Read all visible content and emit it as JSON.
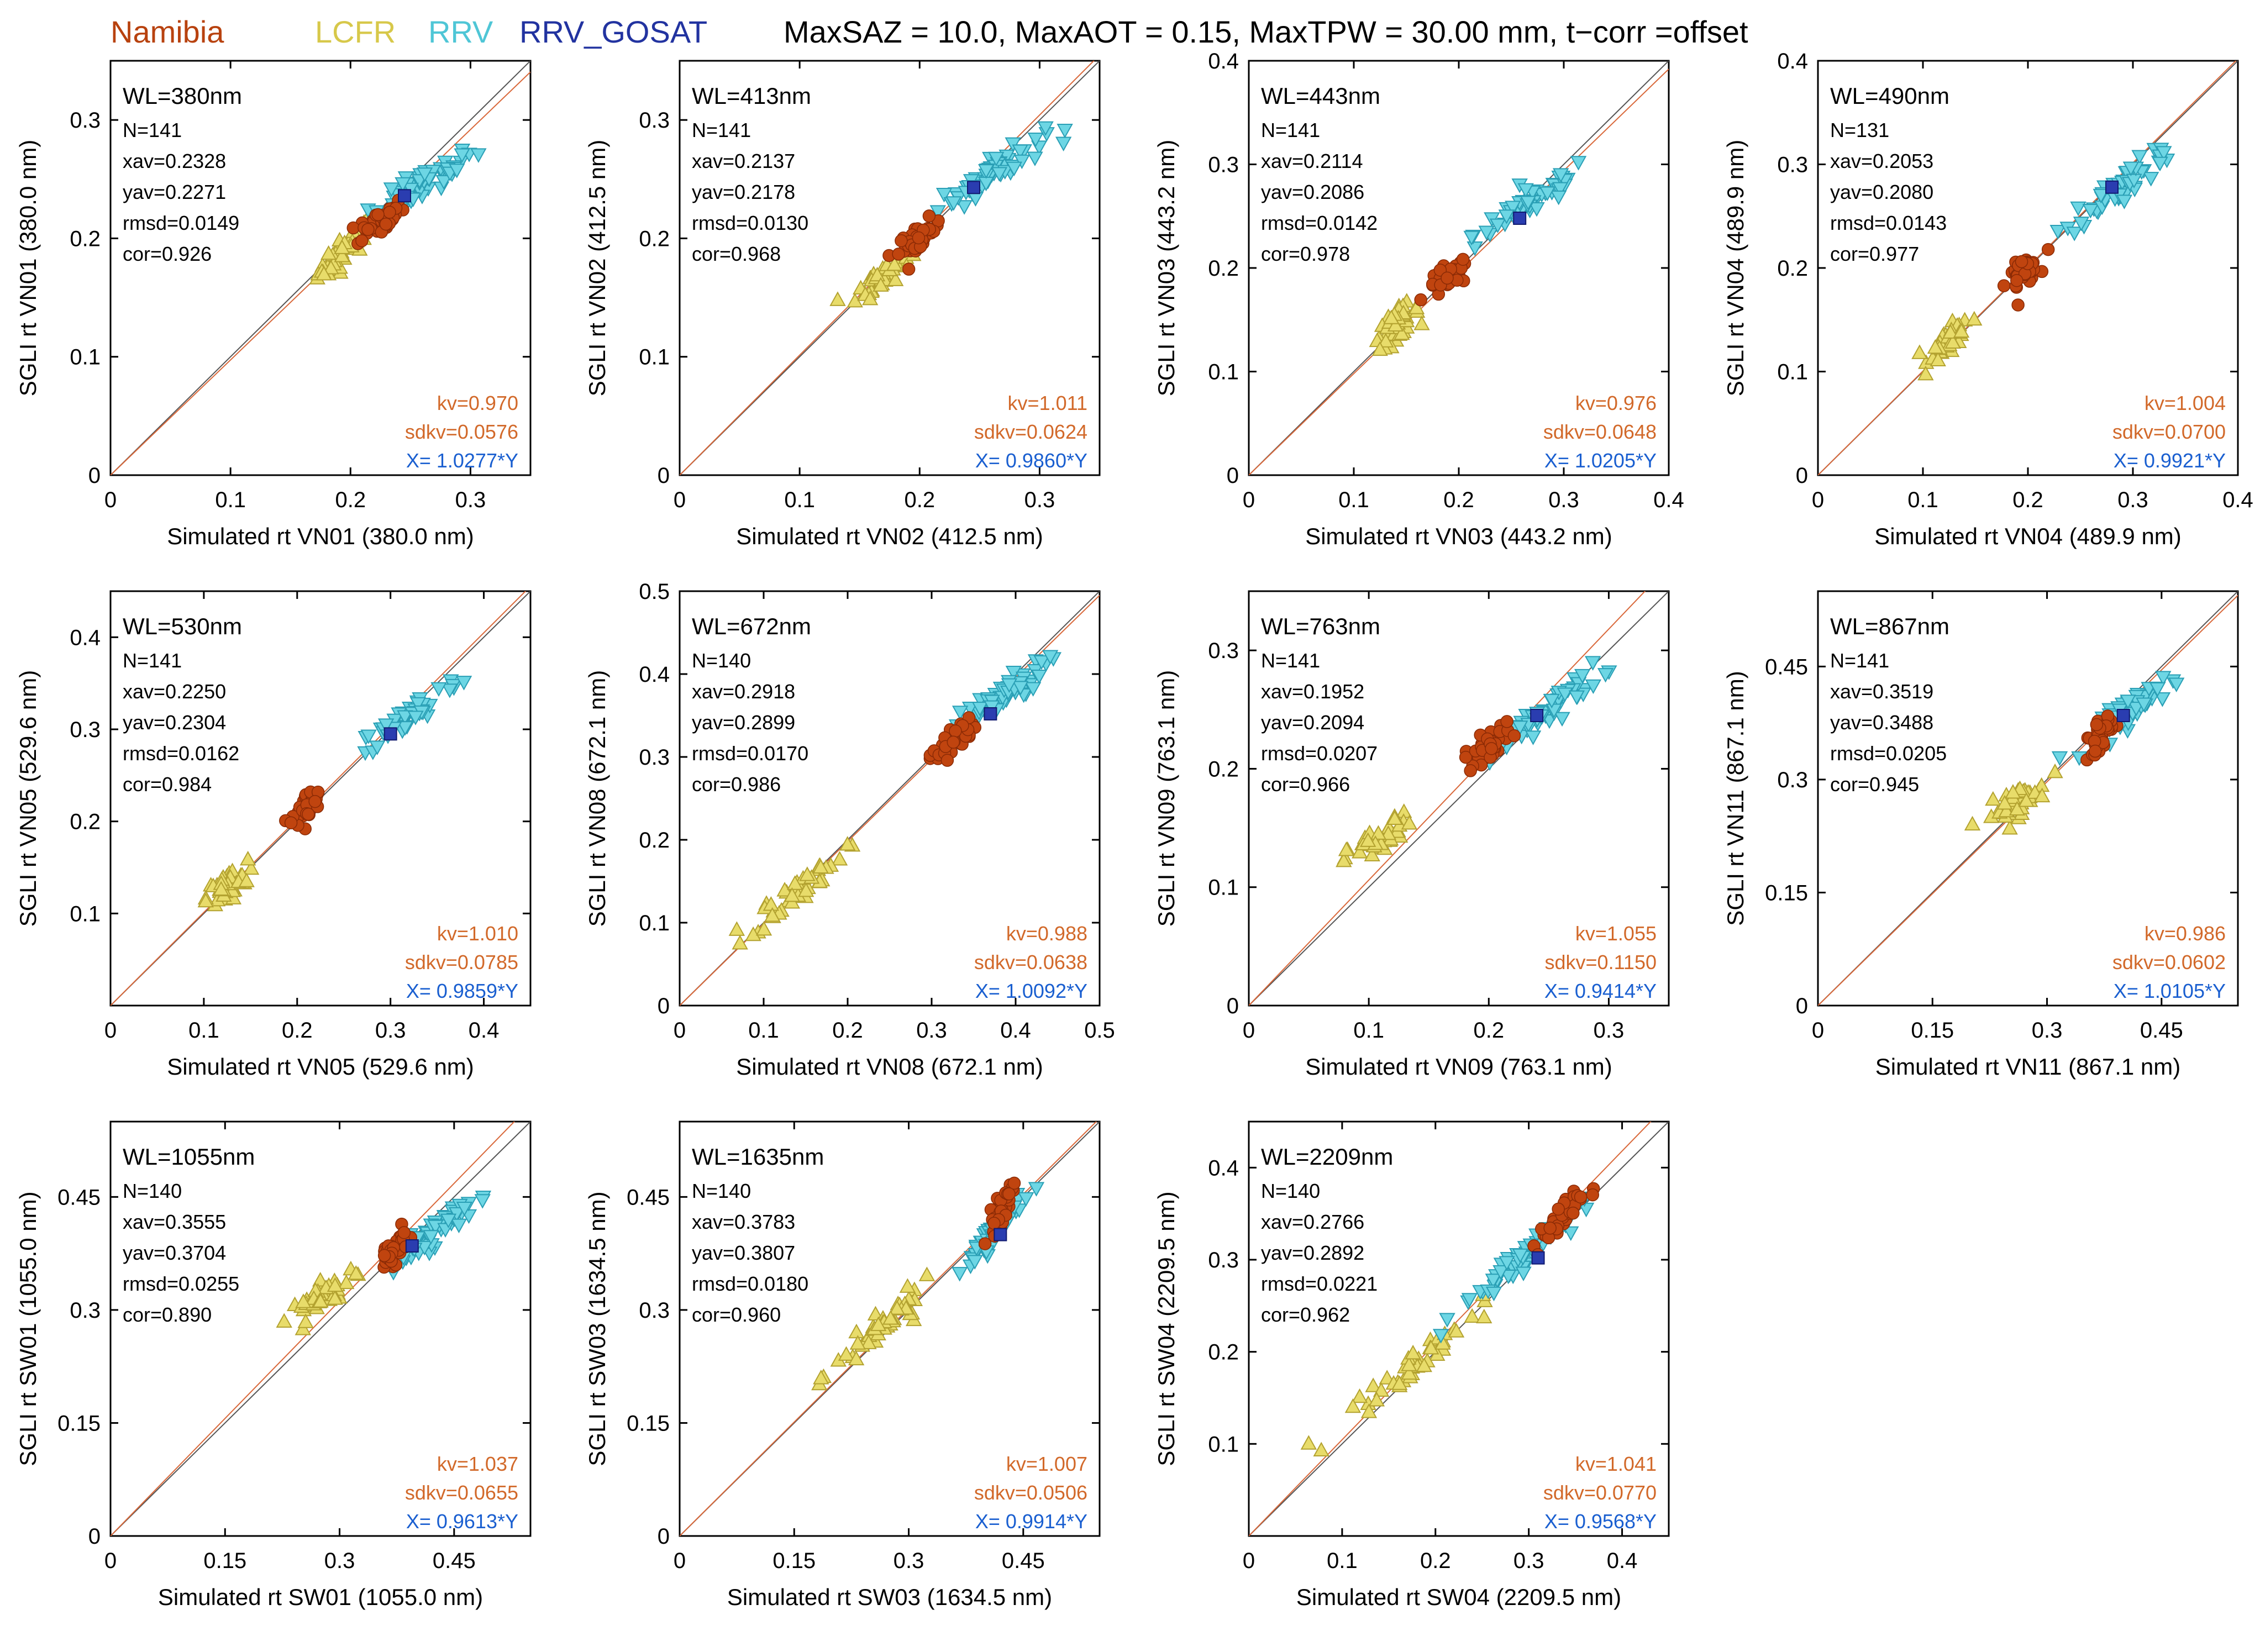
{
  "header": {
    "legend": [
      {
        "label": "Namibia",
        "color": "#b8420f"
      },
      {
        "label": "LCFR",
        "color": "#d7c84a"
      },
      {
        "label": "RRV",
        "color": "#4fc6d6"
      },
      {
        "label": "RRV_GOSAT",
        "color": "#2233a0"
      }
    ],
    "condition": "MaxSAZ = 10.0, MaxAOT = 0.15, MaxTPW = 30.00 mm, t−corr =offset"
  },
  "colors": {
    "namibia_fill": "#c0440f",
    "namibia_stroke": "#8a2a05",
    "lcfr_fill": "#e8dc6a",
    "lcfr_stroke": "#b3a230",
    "rrv_fill": "#6dd6e4",
    "rrv_stroke": "#2a9fb5",
    "gosat_fill": "#2a3db0",
    "fit_line": "#d9683a",
    "kv_text": "#d2692a",
    "x_text": "#1a5fd0"
  },
  "chart_data": [
    {
      "type": "scatter",
      "wl": "WL=380nm",
      "xlabel": "Simulated rt VN01 (380.0 nm)",
      "ylabel": "SGLI rt VN01 (380.0 nm)",
      "xlim": [
        0,
        0.35
      ],
      "ylim": [
        0,
        0.35
      ],
      "xticks": [
        "0",
        "0.1",
        "0.2",
        "0.3"
      ],
      "yticks": [
        "0",
        "0.1",
        "0.2",
        "0.3"
      ],
      "tickvals": [
        0,
        0.1,
        0.2,
        0.3
      ],
      "stats": [
        "N=141",
        "xav=0.2328",
        "yav=0.2271",
        "rmsd=0.0149",
        "cor=0.926"
      ],
      "kv": "kv=0.970",
      "sdkv": "sdkv=0.0576",
      "xfit": "X= 1.0277*Y",
      "slope": 0.973,
      "lcfr": {
        "c": [
          0.195,
          0.19
        ],
        "r": [
          0.02,
          0.018
        ]
      },
      "nam": {
        "c": [
          0.225,
          0.215
        ],
        "r": [
          0.018,
          0.01
        ]
      },
      "rrv": {
        "c": [
          0.26,
          0.245
        ],
        "r": [
          0.04,
          0.025
        ]
      },
      "gosat": [
        0.245,
        0.236
      ]
    },
    {
      "type": "scatter",
      "wl": "WL=413nm",
      "xlabel": "Simulated rt VN02 (412.5 nm)",
      "ylabel": "SGLI rt VN02 (412.5 nm)",
      "xlim": [
        0,
        0.35
      ],
      "ylim": [
        0,
        0.35
      ],
      "xticks": [
        "0",
        "0.1",
        "0.2",
        "0.3"
      ],
      "yticks": [
        "0",
        "0.1",
        "0.2",
        "0.3"
      ],
      "tickvals": [
        0,
        0.1,
        0.2,
        0.3
      ],
      "stats": [
        "N=141",
        "xav=0.2137",
        "yav=0.2178",
        "rmsd=0.0130",
        "cor=0.968"
      ],
      "kv": "kv=1.011",
      "sdkv": "sdkv=0.0624",
      "xfit": "X= 0.9860*Y",
      "slope": 1.014,
      "lcfr": {
        "c": [
          0.17,
          0.17
        ],
        "r": [
          0.02,
          0.015
        ]
      },
      "nam": {
        "c": [
          0.2,
          0.2
        ],
        "r": [
          0.016,
          0.01
        ]
      },
      "rrv": {
        "c": [
          0.26,
          0.255
        ],
        "r": [
          0.04,
          0.025
        ]
      },
      "gosat": [
        0.245,
        0.243
      ]
    },
    {
      "type": "scatter",
      "wl": "WL=443nm",
      "xlabel": "Simulated rt VN03 (443.2 nm)",
      "ylabel": "SGLI rt VN03 (443.2 nm)",
      "xlim": [
        0,
        0.4
      ],
      "ylim": [
        0,
        0.4
      ],
      "xticks": [
        "0",
        "0.1",
        "0.2",
        "0.3",
        "0.4"
      ],
      "yticks": [
        "0",
        "0.1",
        "0.2",
        "0.3",
        "0.4"
      ],
      "tickvals": [
        0,
        0.1,
        0.2,
        0.3,
        0.4
      ],
      "stats": [
        "N=141",
        "xav=0.2114",
        "yav=0.2086",
        "rmsd=0.0142",
        "cor=0.978"
      ],
      "kv": "kv=0.976",
      "sdkv": "sdkv=0.0648",
      "xfit": "X= 1.0205*Y",
      "slope": 0.98,
      "lcfr": {
        "c": [
          0.14,
          0.145
        ],
        "r": [
          0.02,
          0.015
        ]
      },
      "nam": {
        "c": [
          0.19,
          0.19
        ],
        "r": [
          0.018,
          0.01
        ]
      },
      "rrv": {
        "c": [
          0.27,
          0.265
        ],
        "r": [
          0.05,
          0.03
        ]
      },
      "gosat": [
        0.258,
        0.248
      ]
    },
    {
      "type": "scatter",
      "wl": "WL=490nm",
      "xlabel": "Simulated rt VN04 (489.9 nm)",
      "ylabel": "SGLI rt VN04 (489.9 nm)",
      "xlim": [
        0,
        0.4
      ],
      "ylim": [
        0,
        0.4
      ],
      "xticks": [
        "0",
        "0.1",
        "0.2",
        "0.3",
        "0.4"
      ],
      "yticks": [
        "0",
        "0.1",
        "0.2",
        "0.3",
        "0.4"
      ],
      "tickvals": [
        0,
        0.1,
        0.2,
        0.3,
        0.4
      ],
      "stats": [
        "N=131",
        "xav=0.2053",
        "yav=0.2080",
        "rmsd=0.0143",
        "cor=0.977"
      ],
      "kv": "kv=1.004",
      "sdkv": "sdkv=0.0700",
      "xfit": "X= 0.9921*Y",
      "slope": 1.005,
      "lcfr": {
        "c": [
          0.125,
          0.13
        ],
        "r": [
          0.018,
          0.012
        ]
      },
      "nam": {
        "c": [
          0.195,
          0.195
        ],
        "r": [
          0.014,
          0.01
        ]
      },
      "rrv": {
        "c": [
          0.29,
          0.28
        ],
        "r": [
          0.05,
          0.035
        ]
      },
      "gosat": [
        0.28,
        0.278
      ]
    },
    {
      "type": "scatter",
      "wl": "WL=530nm",
      "xlabel": "Simulated rt VN05 (529.6 nm)",
      "ylabel": "SGLI rt VN05 (529.6 nm)",
      "xlim": [
        0,
        0.45
      ],
      "ylim": [
        0,
        0.45
      ],
      "xticks": [
        "0",
        "0.1",
        "0.2",
        "0.3",
        "0.4"
      ],
      "yticks": [
        "0.1",
        "0.2",
        "0.3",
        "0.4"
      ],
      "tickvals": [
        0,
        0.1,
        0.2,
        0.3,
        0.4
      ],
      "stats": [
        "N=141",
        "xav=0.2250",
        "yav=0.2304",
        "rmsd=0.0162",
        "cor=0.984"
      ],
      "kv": "kv=1.010",
      "sdkv": "sdkv=0.0785",
      "xfit": "X= 0.9859*Y",
      "slope": 1.012,
      "lcfr": {
        "c": [
          0.125,
          0.13
        ],
        "r": [
          0.02,
          0.012
        ]
      },
      "nam": {
        "c": [
          0.21,
          0.215
        ],
        "r": [
          0.014,
          0.01
        ]
      },
      "rrv": {
        "c": [
          0.32,
          0.315
        ],
        "r": [
          0.05,
          0.035
        ]
      },
      "gosat": [
        0.3,
        0.295
      ]
    },
    {
      "type": "scatter",
      "wl": "WL=672nm",
      "xlabel": "Simulated rt VN08 (672.1 nm)",
      "ylabel": "SGLI rt VN08 (672.1 nm)",
      "xlim": [
        0,
        0.5
      ],
      "ylim": [
        0,
        0.5
      ],
      "xticks": [
        "0",
        "0.1",
        "0.2",
        "0.3",
        "0.4",
        "0.5"
      ],
      "yticks": [
        "0",
        "0.1",
        "0.2",
        "0.3",
        "0.4",
        "0.5"
      ],
      "tickvals": [
        0,
        0.1,
        0.2,
        0.3,
        0.4,
        0.5
      ],
      "stats": [
        "N=140",
        "xav=0.2918",
        "yav=0.2899",
        "rmsd=0.0170",
        "cor=0.986"
      ],
      "kv": "kv=0.988",
      "sdkv": "sdkv=0.0638",
      "xfit": "X= 1.0092*Y",
      "slope": 0.99,
      "lcfr": {
        "c": [
          0.14,
          0.14
        ],
        "r": [
          0.05,
          0.04
        ]
      },
      "nam": {
        "c": [
          0.325,
          0.32
        ],
        "r": [
          0.025,
          0.02
        ]
      },
      "rrv": {
        "c": [
          0.38,
          0.37
        ],
        "r": [
          0.05,
          0.035
        ]
      },
      "gosat": [
        0.37,
        0.352
      ]
    },
    {
      "type": "scatter",
      "wl": "WL=763nm",
      "xlabel": "Simulated rt VN09 (763.1 nm)",
      "ylabel": "SGLI rt VN09 (763.1 nm)",
      "xlim": [
        0,
        0.35
      ],
      "ylim": [
        0,
        0.35
      ],
      "xticks": [
        "0",
        "0.1",
        "0.2",
        "0.3"
      ],
      "yticks": [
        "0",
        "0.1",
        "0.2",
        "0.3"
      ],
      "tickvals": [
        0,
        0.1,
        0.2,
        0.3
      ],
      "stats": [
        "N=141",
        "xav=0.1952",
        "yav=0.2094",
        "rmsd=0.0207",
        "cor=0.966"
      ],
      "kv": "kv=1.055",
      "sdkv": "sdkv=0.1150",
      "xfit": "X= 0.9414*Y",
      "slope": 1.06,
      "lcfr": {
        "c": [
          0.11,
          0.14
        ],
        "r": [
          0.025,
          0.015
        ]
      },
      "nam": {
        "c": [
          0.2,
          0.22
        ],
        "r": [
          0.018,
          0.012
        ]
      },
      "rrv": {
        "c": [
          0.25,
          0.25
        ],
        "r": [
          0.04,
          0.03
        ]
      },
      "gosat": [
        0.24,
        0.245
      ]
    },
    {
      "type": "scatter",
      "wl": "WL=867nm",
      "xlabel": "Simulated rt VN11 (867.1 nm)",
      "ylabel": "SGLI rt VN11 (867.1 nm)",
      "xlim": [
        0,
        0.55
      ],
      "ylim": [
        0,
        0.55
      ],
      "xticks": [
        "0",
        "0.15",
        "0.3",
        "0.45"
      ],
      "yticks": [
        "0",
        "0.15",
        "0.3",
        "0.45"
      ],
      "tickvals": [
        0,
        0.15,
        0.3,
        0.45
      ],
      "stats": [
        "N=141",
        "xav=0.3519",
        "yav=0.3488",
        "rmsd=0.0205",
        "cor=0.945"
      ],
      "kv": "kv=0.986",
      "sdkv": "sdkv=0.0602",
      "xfit": "X= 1.0105*Y",
      "slope": 0.99,
      "lcfr": {
        "c": [
          0.26,
          0.27
        ],
        "r": [
          0.035,
          0.02
        ]
      },
      "nam": {
        "c": [
          0.37,
          0.36
        ],
        "r": [
          0.015,
          0.015
        ]
      },
      "rrv": {
        "c": [
          0.42,
          0.4
        ],
        "r": [
          0.05,
          0.035
        ]
      },
      "gosat": [
        0.4,
        0.385
      ]
    },
    {
      "type": "scatter",
      "wl": "WL=1055nm",
      "xlabel": "Simulated rt SW01 (1055.0 nm)",
      "ylabel": "SGLI rt SW01 (1055.0 nm)",
      "xlim": [
        0,
        0.55
      ],
      "ylim": [
        0,
        0.55
      ],
      "xticks": [
        "0",
        "0.15",
        "0.3",
        "0.45"
      ],
      "yticks": [
        "0",
        "0.15",
        "0.3",
        "0.45"
      ],
      "tickvals": [
        0,
        0.15,
        0.3,
        0.45
      ],
      "stats": [
        "N=140",
        "xav=0.3555",
        "yav=0.3704",
        "rmsd=0.0255",
        "cor=0.890"
      ],
      "kv": "kv=1.037",
      "sdkv": "sdkv=0.0655",
      "xfit": "X= 0.9613*Y",
      "slope": 1.04,
      "lcfr": {
        "c": [
          0.28,
          0.32
        ],
        "r": [
          0.04,
          0.025
        ]
      },
      "nam": {
        "c": [
          0.37,
          0.38
        ],
        "r": [
          0.018,
          0.015
        ]
      },
      "rrv": {
        "c": [
          0.42,
          0.4
        ],
        "r": [
          0.045,
          0.035
        ]
      },
      "gosat": [
        0.395,
        0.385
      ]
    },
    {
      "type": "scatter",
      "wl": "WL=1635nm",
      "xlabel": "Simulated rt SW03 (1634.5 nm)",
      "ylabel": "SGLI rt SW03 (1634.5 nm)",
      "xlim": [
        0,
        0.55
      ],
      "ylim": [
        0,
        0.55
      ],
      "xticks": [
        "0",
        "0.15",
        "0.3",
        "0.45"
      ],
      "yticks": [
        "0",
        "0.15",
        "0.3",
        "0.45"
      ],
      "tickvals": [
        0,
        0.15,
        0.3,
        0.45
      ],
      "stats": [
        "N=140",
        "xav=0.3783",
        "yav=0.3807",
        "rmsd=0.0180",
        "cor=0.960"
      ],
      "kv": "kv=1.007",
      "sdkv": "sdkv=0.0506",
      "xfit": "X= 0.9914*Y",
      "slope": 1.008,
      "lcfr": {
        "c": [
          0.27,
          0.28
        ],
        "r": [
          0.06,
          0.05
        ]
      },
      "nam": {
        "c": [
          0.42,
          0.43
        ],
        "r": [
          0.015,
          0.025
        ]
      },
      "rrv": {
        "c": [
          0.41,
          0.4
        ],
        "r": [
          0.035,
          0.04
        ]
      },
      "gosat": [
        0.42,
        0.4
      ]
    },
    {
      "type": "scatter",
      "wl": "WL=2209nm",
      "xlabel": "Simulated rt SW04 (2209.5 nm)",
      "ylabel": "SGLI rt SW04 (2209.5 nm)",
      "xlim": [
        0,
        0.45
      ],
      "ylim": [
        0,
        0.45
      ],
      "xticks": [
        "0",
        "0.1",
        "0.2",
        "0.3",
        "0.4"
      ],
      "yticks": [
        "0.1",
        "0.2",
        "0.3",
        "0.4"
      ],
      "tickvals": [
        0,
        0.1,
        0.2,
        0.3,
        0.4
      ],
      "stats": [
        "N=140",
        "xav=0.2766",
        "yav=0.2892",
        "rmsd=0.0221",
        "cor=0.962"
      ],
      "kv": "kv=1.041",
      "sdkv": "sdkv=0.0770",
      "xfit": "X= 0.9568*Y",
      "slope": 1.045,
      "lcfr": {
        "c": [
          0.18,
          0.19
        ],
        "r": [
          0.07,
          0.06
        ]
      },
      "nam": {
        "c": [
          0.33,
          0.34
        ],
        "r": [
          0.025,
          0.025
        ]
      },
      "rrv": {
        "c": [
          0.29,
          0.3
        ],
        "r": [
          0.06,
          0.05
        ]
      },
      "gosat": [
        0.31,
        0.302
      ]
    }
  ]
}
